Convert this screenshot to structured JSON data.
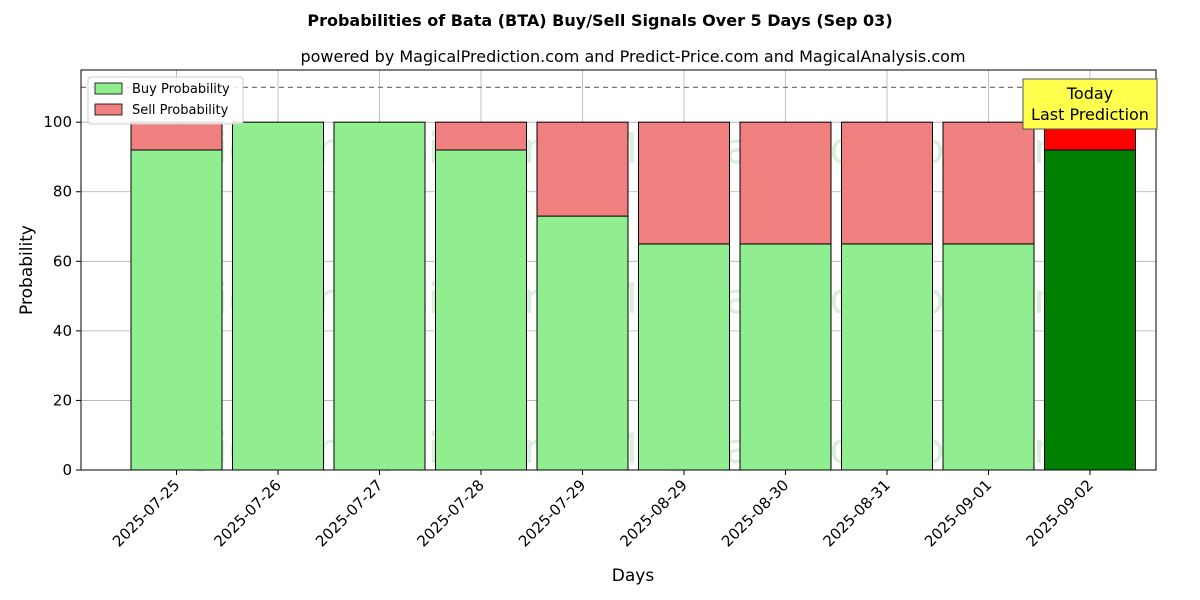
{
  "chart_data": {
    "type": "bar",
    "stacked": true,
    "title": "Probabilities of Bata (BTA) Buy/Sell Signals Over 5 Days (Sep 03)",
    "subtitle": "powered by MagicalPrediction.com and Predict-Price.com and MagicalAnalysis.com",
    "xlabel": "Days",
    "ylabel": "Probability",
    "ylim": [
      0,
      115
    ],
    "yticks": [
      0,
      20,
      40,
      60,
      80,
      100
    ],
    "grid": true,
    "legend_position": "top-left",
    "reference_line": {
      "y": 110,
      "style": "dashed"
    },
    "categories": [
      "2025-07-25",
      "2025-07-26",
      "2025-07-27",
      "2025-07-28",
      "2025-07-29",
      "2025-08-29",
      "2025-08-30",
      "2025-08-31",
      "2025-09-01",
      "2025-09-02"
    ],
    "series": [
      {
        "name": "Buy Probability",
        "color": "#90ee90",
        "highlight_color": "#008000",
        "values": [
          92,
          100,
          100,
          92,
          73,
          65,
          65,
          65,
          65,
          92
        ]
      },
      {
        "name": "Sell Probability",
        "color": "#f08080",
        "highlight_color": "#ff0000",
        "values": [
          8,
          0,
          0,
          8,
          27,
          35,
          35,
          35,
          35,
          8
        ]
      }
    ],
    "highlight_index": 9,
    "annotation": {
      "lines": [
        "Today",
        "Last Prediction"
      ],
      "category_index": 9,
      "background": "#ffff4d"
    },
    "watermarks": [
      "MagicalAnalysis.com",
      "MagicalPrediction.com"
    ]
  }
}
